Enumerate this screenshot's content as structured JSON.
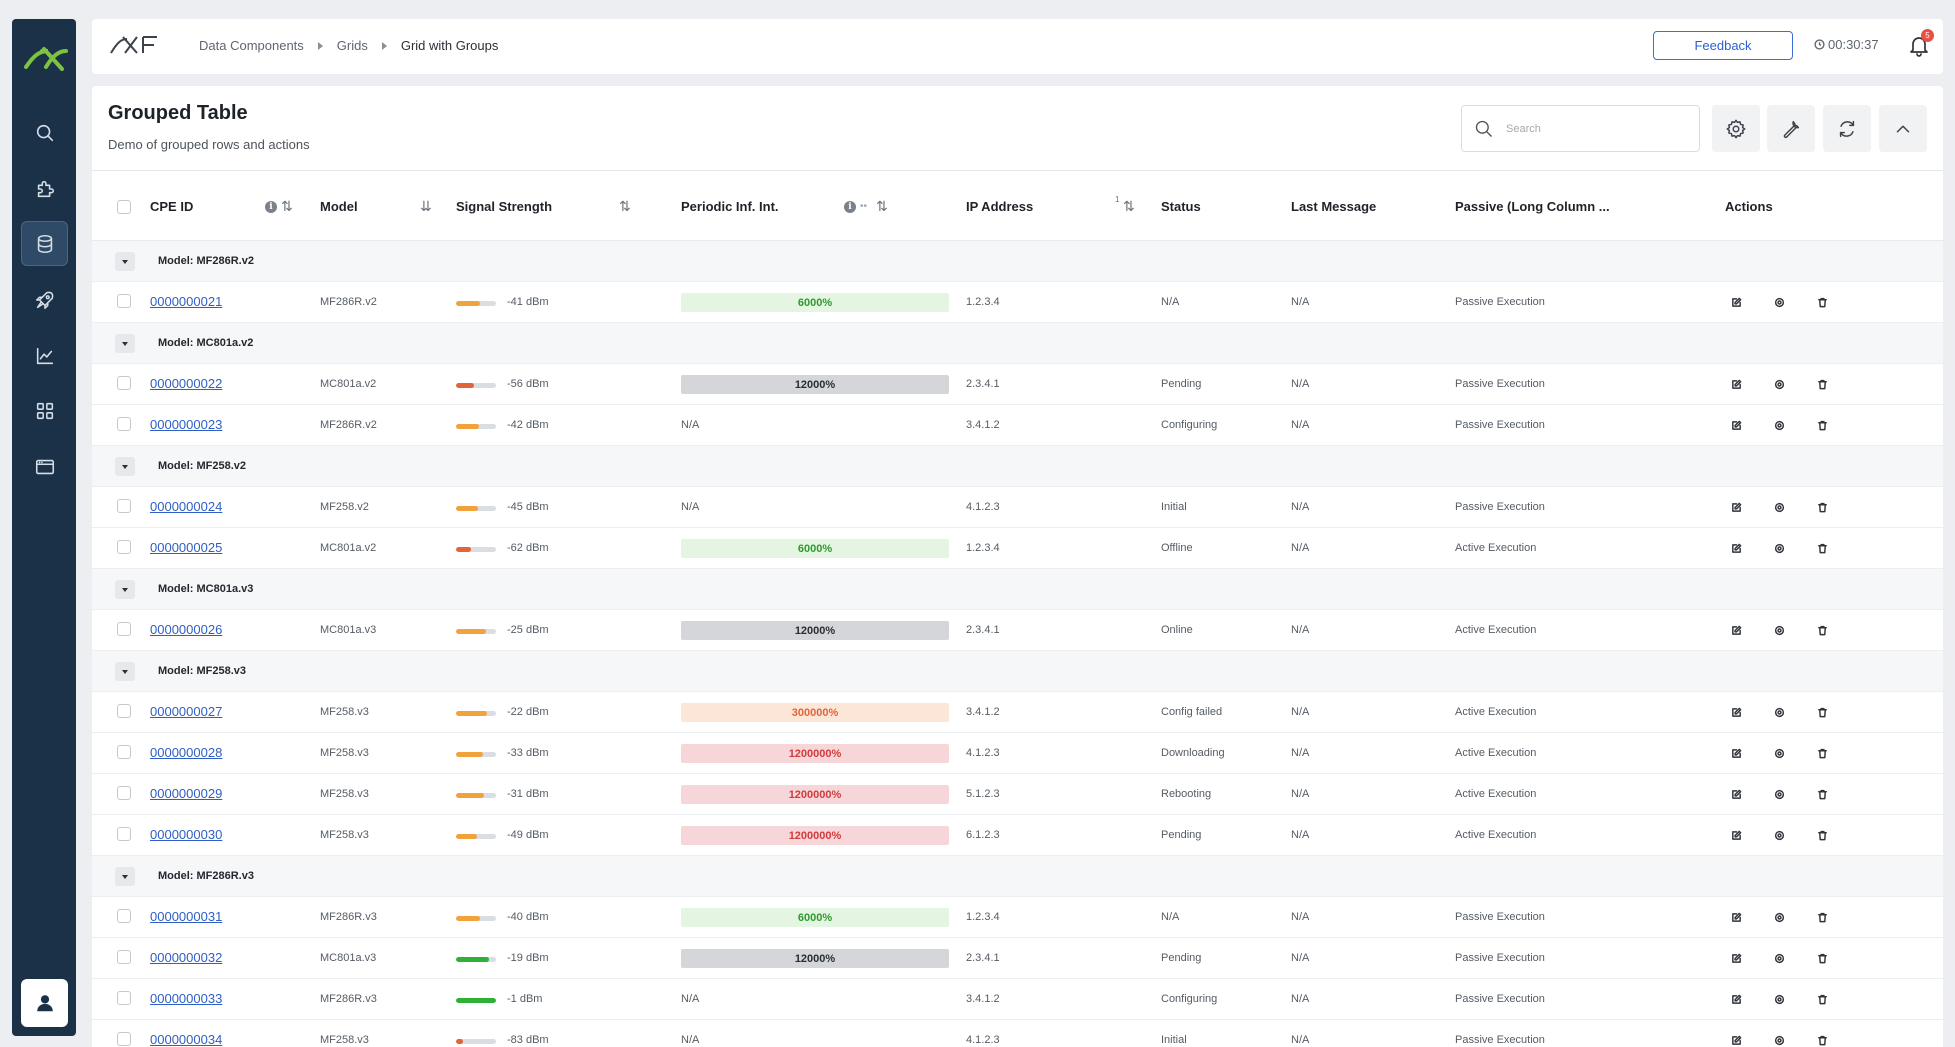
{
  "header": {
    "breadcrumb": [
      "Data Components",
      "Grids",
      "Grid with Groups"
    ],
    "feedback_label": "Feedback",
    "timer": "00:30:37",
    "notification_count": "5"
  },
  "page": {
    "title": "Grouped Table",
    "subtitle": "Demo of grouped rows and actions",
    "search_placeholder": "Search"
  },
  "table": {
    "columns": {
      "cpe_id": "CPE ID",
      "model": "Model",
      "signal": "Signal Strength",
      "periodic": "Periodic Inf. Int.",
      "ip": "IP Address",
      "status": "Status",
      "last_message": "Last Message",
      "passive": "Passive (Long Column ...",
      "actions": "Actions"
    },
    "ip_sort_index": "1",
    "rows": [
      {
        "type": "group",
        "label": "Model: MF286R.v2"
      },
      {
        "type": "data",
        "cpe": "0000000021",
        "model": "MF286R.v2",
        "signal": "-41 dBm",
        "signal_level": 0.6,
        "signal_color": "#f2a23a",
        "pi": "6000%",
        "pi_style": "green",
        "ip": "1.2.3.4",
        "status": "N/A",
        "last": "N/A",
        "passive": "Passive Execution"
      },
      {
        "type": "group",
        "label": "Model: MC801a.v2"
      },
      {
        "type": "data",
        "cpe": "0000000022",
        "model": "MC801a.v2",
        "signal": "-56 dBm",
        "signal_level": 0.45,
        "signal_color": "#e0663a",
        "pi": "12000%",
        "pi_style": "gray",
        "ip": "2.3.4.1",
        "status": "Pending",
        "last": "N/A",
        "passive": "Passive Execution"
      },
      {
        "type": "data",
        "cpe": "0000000023",
        "model": "MF286R.v2",
        "signal": "-42 dBm",
        "signal_level": 0.58,
        "signal_color": "#f2a23a",
        "pi": "N/A",
        "pi_style": "none",
        "ip": "3.4.1.2",
        "status": "Configuring",
        "last": "N/A",
        "passive": "Passive Execution"
      },
      {
        "type": "group",
        "label": "Model: MF258.v2"
      },
      {
        "type": "data",
        "cpe": "0000000024",
        "model": "MF258.v2",
        "signal": "-45 dBm",
        "signal_level": 0.55,
        "signal_color": "#f2a23a",
        "pi": "N/A",
        "pi_style": "none",
        "ip": "4.1.2.3",
        "status": "Initial",
        "last": "N/A",
        "passive": "Passive Execution"
      },
      {
        "type": "data",
        "cpe": "0000000025",
        "model": "MC801a.v2",
        "signal": "-62 dBm",
        "signal_level": 0.38,
        "signal_color": "#e0663a",
        "pi": "6000%",
        "pi_style": "green",
        "ip": "1.2.3.4",
        "status": "Offline",
        "last": "N/A",
        "passive": "Active Execution"
      },
      {
        "type": "group",
        "label": "Model: MC801a.v3"
      },
      {
        "type": "data",
        "cpe": "0000000026",
        "model": "MC801a.v3",
        "signal": "-25 dBm",
        "signal_level": 0.75,
        "signal_color": "#f2a23a",
        "pi": "12000%",
        "pi_style": "gray",
        "ip": "2.3.4.1",
        "status": "Online",
        "last": "N/A",
        "passive": "Active Execution"
      },
      {
        "type": "group",
        "label": "Model: MF258.v3"
      },
      {
        "type": "data",
        "cpe": "0000000027",
        "model": "MF258.v3",
        "signal": "-22 dBm",
        "signal_level": 0.78,
        "signal_color": "#f2a23a",
        "pi": "300000%",
        "pi_style": "orange",
        "ip": "3.4.1.2",
        "status": "Config failed",
        "last": "N/A",
        "passive": "Active Execution"
      },
      {
        "type": "data",
        "cpe": "0000000028",
        "model": "MF258.v3",
        "signal": "-33 dBm",
        "signal_level": 0.68,
        "signal_color": "#f2a23a",
        "pi": "1200000%",
        "pi_style": "red",
        "ip": "4.1.2.3",
        "status": "Downloading",
        "last": "N/A",
        "passive": "Active Execution"
      },
      {
        "type": "data",
        "cpe": "0000000029",
        "model": "MF258.v3",
        "signal": "-31 dBm",
        "signal_level": 0.7,
        "signal_color": "#f2a23a",
        "pi": "1200000%",
        "pi_style": "red",
        "ip": "5.1.2.3",
        "status": "Rebooting",
        "last": "N/A",
        "passive": "Active Execution"
      },
      {
        "type": "data",
        "cpe": "0000000030",
        "model": "MF258.v3",
        "signal": "-49 dBm",
        "signal_level": 0.52,
        "signal_color": "#f2a23a",
        "pi": "1200000%",
        "pi_style": "red",
        "ip": "6.1.2.3",
        "status": "Pending",
        "last": "N/A",
        "passive": "Active Execution"
      },
      {
        "type": "group",
        "label": "Model: MF286R.v3"
      },
      {
        "type": "data",
        "cpe": "0000000031",
        "model": "MF286R.v3",
        "signal": "-40 dBm",
        "signal_level": 0.6,
        "signal_color": "#f2a23a",
        "pi": "6000%",
        "pi_style": "green",
        "ip": "1.2.3.4",
        "status": "N/A",
        "last": "N/A",
        "passive": "Passive Execution"
      },
      {
        "type": "data",
        "cpe": "0000000032",
        "model": "MC801a.v3",
        "signal": "-19 dBm",
        "signal_level": 0.82,
        "signal_color": "#2eb134",
        "pi": "12000%",
        "pi_style": "gray",
        "ip": "2.3.4.1",
        "status": "Pending",
        "last": "N/A",
        "passive": "Passive Execution"
      },
      {
        "type": "data",
        "cpe": "0000000033",
        "model": "MF286R.v3",
        "signal": "-1 dBm",
        "signal_level": 1.0,
        "signal_color": "#2eb134",
        "pi": "N/A",
        "pi_style": "none",
        "ip": "3.4.1.2",
        "status": "Configuring",
        "last": "N/A",
        "passive": "Passive Execution"
      },
      {
        "type": "data",
        "cpe": "0000000034",
        "model": "MF258.v3",
        "signal": "-83 dBm",
        "signal_level": 0.18,
        "signal_color": "#e0663a",
        "pi": "N/A",
        "pi_style": "none",
        "ip": "4.1.2.3",
        "status": "Initial",
        "last": "N/A",
        "passive": "Passive Execution"
      }
    ]
  },
  "colors": {
    "sidebar": "#1b3148",
    "accent": "#2c5fd0",
    "logo_green": "#7dc242",
    "pi_green_bg": "#e4f6e1",
    "pi_green_fg": "#2e9a2e",
    "pi_gray_bg": "#d4d6d9",
    "pi_gray_fg": "#2a2e33",
    "pi_orange_bg": "#fce6d8",
    "pi_orange_fg": "#e0663a",
    "pi_red_bg": "#f6d6d8",
    "pi_red_fg": "#d23b3b"
  },
  "icons": {
    "sidebar": [
      "search-icon",
      "puzzle-icon",
      "database-icon",
      "rocket-icon",
      "chart-line-icon",
      "grid-icon",
      "browser-window-icon"
    ],
    "user": "user-icon",
    "tools": [
      "gear-icon",
      "wrench-icon",
      "refresh-icon",
      "chevron-up-icon"
    ],
    "row_actions": [
      "edit-icon",
      "settings-icon",
      "trash-icon"
    ]
  }
}
